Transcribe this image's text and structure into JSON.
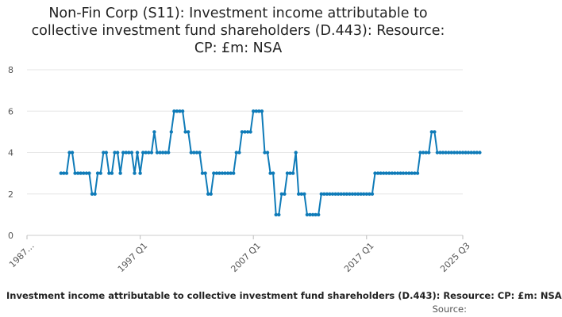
{
  "chart_data": {
    "type": "line",
    "title_lines": [
      "Non-Fin Corp (S11): Investment income attributable to",
      "collective investment fund shareholders (D.443): Resource:",
      "CP: £m: NSA"
    ],
    "ylim": [
      0,
      8
    ],
    "y_ticks": [
      0,
      2,
      4,
      6,
      8
    ],
    "x_tick_labels": [
      "1987…",
      "1997 Q1",
      "2007 Q1",
      "2017 Q1",
      "2025 Q3"
    ],
    "series": [
      {
        "name": "Investment income attributable to collective investment fund shareholders (D.443)",
        "color": "#0f7bb8",
        "start": "1990 Q1",
        "values": [
          3,
          3,
          3,
          4,
          4,
          3,
          3,
          3,
          3,
          3,
          3,
          2,
          2,
          3,
          3,
          4,
          4,
          3,
          3,
          4,
          4,
          3,
          4,
          4,
          4,
          4,
          3,
          4,
          3,
          4,
          4,
          4,
          4,
          5,
          4,
          4,
          4,
          4,
          4,
          5,
          6,
          6,
          6,
          6,
          5,
          5,
          4,
          4,
          4,
          4,
          3,
          3,
          2,
          2,
          3,
          3,
          3,
          3,
          3,
          3,
          3,
          3,
          4,
          4,
          5,
          5,
          5,
          5,
          6,
          6,
          6,
          6,
          4,
          4,
          3,
          3,
          1,
          1,
          2,
          2,
          3,
          3,
          3,
          4,
          2,
          2,
          2,
          1,
          1,
          1,
          1,
          1,
          2,
          2,
          2,
          2,
          2,
          2,
          2,
          2,
          2,
          2,
          2,
          2,
          2,
          2,
          2,
          2,
          2,
          2,
          2,
          3,
          3,
          3,
          3,
          3,
          3,
          3,
          3,
          3,
          3,
          3,
          3,
          3,
          3,
          3,
          3,
          4,
          4,
          4,
          4,
          5,
          5,
          4,
          4,
          4,
          4,
          4,
          4,
          4,
          4,
          4,
          4,
          4,
          4,
          4,
          4,
          4,
          4
        ]
      }
    ]
  },
  "footnote": "Investment income attributable to collective investment fund shareholders (D.443): Resource: CP: £m: NSA",
  "source_label": "Source:"
}
